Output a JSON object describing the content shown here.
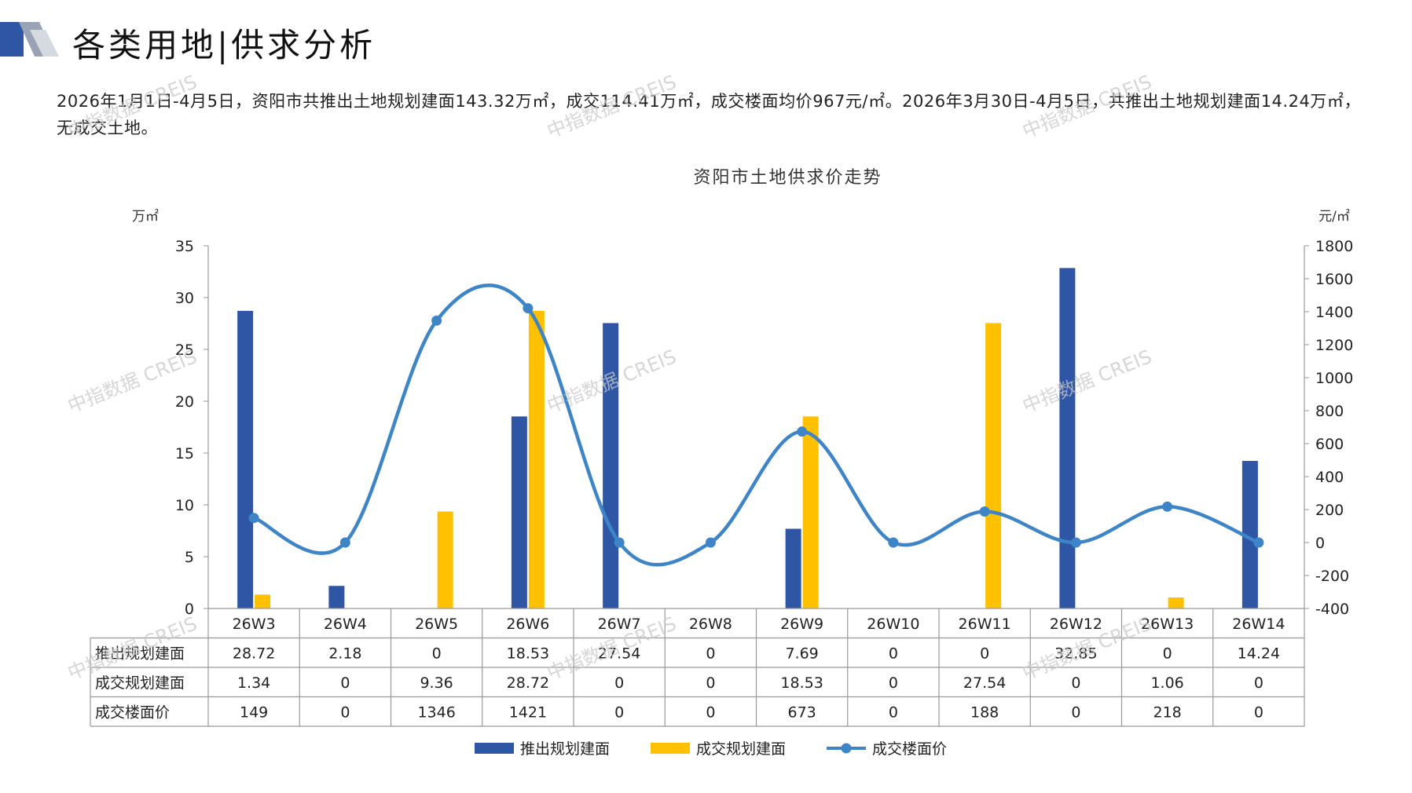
{
  "header": {
    "title": "各类用地|供求分析"
  },
  "summary": "2026年1月1日-4月5日，资阳市共推出土地规划建面143.32万㎡，成交114.41万㎡，成交楼面均价967元/㎡。2026年3月30日-4月5日，共推出土地规划建面14.24万㎡，无成交土地。",
  "watermark": "中指数据 CREIS",
  "colors": {
    "supply": "#2E56A5",
    "deal": "#FFC000",
    "price": "#3E85C8",
    "grid": "#999999"
  },
  "chart_data": {
    "type": "bar",
    "title": "资阳市土地供求价走势",
    "ylabel": "万㎡",
    "y2label": "元/㎡",
    "ylim": [
      0,
      35
    ],
    "y2lim": [
      -400,
      1800
    ],
    "yticks": [
      0,
      5,
      10,
      15,
      20,
      25,
      30,
      35
    ],
    "y2ticks": [
      -400,
      -200,
      0,
      200,
      400,
      600,
      800,
      1000,
      1200,
      1400,
      1600,
      1800
    ],
    "grid": false,
    "legend": "bottom",
    "categories": [
      "26W3",
      "26W4",
      "26W5",
      "26W6",
      "26W7",
      "26W8",
      "26W9",
      "26W10",
      "26W11",
      "26W12",
      "26W13",
      "26W14"
    ],
    "series": [
      {
        "name": "推出规划建面",
        "type": "bar",
        "axis": "left",
        "values": [
          28.72,
          2.18,
          0,
          18.53,
          27.54,
          0,
          7.69,
          0,
          0,
          32.85,
          0,
          14.24
        ]
      },
      {
        "name": "成交规划建面",
        "type": "bar",
        "axis": "left",
        "values": [
          1.34,
          0,
          9.36,
          28.72,
          0,
          0,
          18.53,
          0,
          27.54,
          0,
          1.06,
          0
        ]
      },
      {
        "name": "成交楼面价",
        "type": "line",
        "axis": "right",
        "smooth": true,
        "values": [
          149,
          0,
          1346,
          1421,
          0,
          0,
          673,
          0,
          188,
          0,
          218,
          0
        ]
      }
    ],
    "table_rows": [
      {
        "label": "推出规划建面",
        "values": [
          "28.72",
          "2.18",
          "0",
          "18.53",
          "27.54",
          "0",
          "7.69",
          "0",
          "0",
          "32.85",
          "0",
          "14.24"
        ]
      },
      {
        "label": "成交规划建面",
        "values": [
          "1.34",
          "0",
          "9.36",
          "28.72",
          "0",
          "0",
          "18.53",
          "0",
          "27.54",
          "0",
          "1.06",
          "0"
        ]
      },
      {
        "label": "成交楼面价",
        "values": [
          "149",
          "0",
          "1346",
          "1421",
          "0",
          "0",
          "673",
          "0",
          "188",
          "0",
          "218",
          "0"
        ]
      }
    ]
  }
}
